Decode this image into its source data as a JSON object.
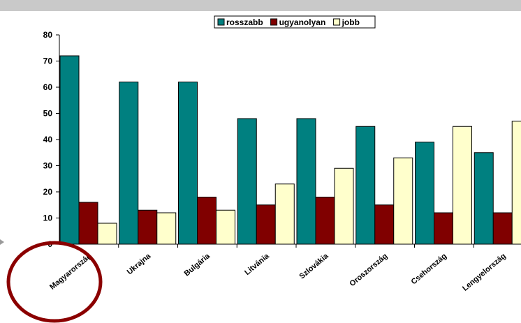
{
  "chart_data": {
    "type": "bar",
    "categories": [
      "Magyarország",
      "Ukrajna",
      "Bulgária",
      "Litvánia",
      "Szlovákia",
      "Oroszország",
      "Csehország",
      "Lengyelország"
    ],
    "series": [
      {
        "name": "rosszabb",
        "color": "#008080",
        "values": [
          72,
          62,
          62,
          48,
          48,
          45,
          39,
          35
        ]
      },
      {
        "name": "ugyanolyan",
        "color": "#800000",
        "values": [
          16,
          13,
          18,
          15,
          18,
          15,
          12,
          12
        ]
      },
      {
        "name": "jobb",
        "color": "#FFFFCC",
        "values": [
          8,
          12,
          13,
          23,
          29,
          33,
          45,
          47
        ]
      }
    ],
    "ylim": [
      0,
      80
    ],
    "yticks": [
      "0",
      "10",
      "20",
      "30",
      "40",
      "50",
      "60",
      "70",
      "80"
    ],
    "grid": false,
    "legend_position": "top",
    "highlight": {
      "category": "Magyarország",
      "shape": "circle",
      "color": "#8B0000"
    }
  }
}
